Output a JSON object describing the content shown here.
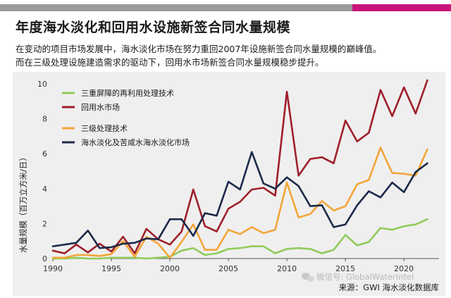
{
  "header": {
    "title": "年度海水淡化和回用水设施新签合同水量规模",
    "subtitle_lines": [
      "在变动的项目市场发展中，海水淡化市场在努力重回2007年设施新签合同水量规模的巅峰值。",
      "而在三级处理设施建造需求的驱动下，回用水市场新签合同水量规模稳步提升。"
    ]
  },
  "colors": {
    "top_bar_grey": "#9a9a9a",
    "top_bar_accent": "#c8147a",
    "panel_bg": "#efefef"
  },
  "watermark": "微信号: GlobalWaterIntel",
  "source": "来源：GWI 海水淡化数据库",
  "chart_data": {
    "type": "line",
    "ylabel": "水量规模（百万立方米/日）",
    "xlim": [
      1990,
      2023
    ],
    "ylim": [
      0,
      10
    ],
    "x_ticks": [
      1990,
      1995,
      2000,
      2005,
      2010,
      2015,
      2020
    ],
    "y_ticks": [
      0,
      2,
      4,
      6,
      8,
      10
    ],
    "grid": false,
    "legend_position": "top-left",
    "x": [
      1990,
      1991,
      1992,
      1993,
      1994,
      1995,
      1996,
      1997,
      1998,
      1999,
      2000,
      2001,
      2002,
      2003,
      2004,
      2005,
      2006,
      2007,
      2008,
      2009,
      2010,
      2011,
      2012,
      2013,
      2014,
      2015,
      2016,
      2017,
      2018,
      2019,
      2020,
      2021,
      2022
    ],
    "series": [
      {
        "name": "三重屏障的再利用处理技术",
        "color": "#8fcb5a",
        "values": [
          0,
          0,
          0.05,
          0,
          0,
          0.05,
          0.05,
          0.05,
          0,
          0.05,
          0.1,
          0.45,
          0.6,
          0.2,
          0.3,
          0.55,
          0.6,
          0.7,
          0.7,
          0.3,
          0.55,
          0.6,
          0.55,
          0.3,
          0.5,
          1.35,
          0.75,
          0.95,
          1.75,
          1.65,
          1.85,
          1.95,
          2.25
        ]
      },
      {
        "name": "回用水市场",
        "color": "#9e1f2b",
        "values": [
          0.45,
          0.3,
          0.8,
          0.35,
          0.85,
          0.4,
          1.25,
          0.3,
          1.7,
          1.1,
          0.8,
          1.55,
          3.95,
          1.85,
          1.55,
          2.85,
          3.25,
          3.95,
          4.05,
          3.6,
          9.55,
          4.75,
          5.7,
          5.8,
          5.45,
          7.9,
          6.7,
          7.2,
          9.65,
          8.15,
          9.8,
          8.3,
          10.2
        ]
      },
      {
        "name": "三级处理技术",
        "color": "#f3a538",
        "values": [
          0.05,
          0.05,
          0.2,
          0.2,
          0.15,
          0.25,
          1.0,
          0.1,
          1.25,
          0.85,
          0.05,
          0.95,
          1.95,
          0.5,
          0.5,
          1.65,
          1.4,
          1.8,
          1.45,
          1.65,
          4.35,
          2.35,
          2.55,
          3.3,
          2.75,
          3.0,
          4.25,
          4.5,
          6.35,
          4.9,
          4.85,
          4.75,
          6.25
        ]
      },
      {
        "name": "海水淡化及苦咸水海水淡化市场",
        "color": "#1b2a4a",
        "values": [
          0.7,
          0.8,
          0.9,
          1.6,
          0.6,
          0.65,
          0.85,
          0.9,
          1.15,
          1.1,
          2.25,
          2.25,
          1.3,
          2.6,
          2.45,
          4.4,
          3.95,
          6.1,
          4.3,
          4.0,
          4.65,
          4.15,
          3.0,
          3.05,
          1.8,
          1.95,
          3.05,
          3.85,
          3.5,
          4.35,
          3.8,
          4.95,
          5.45
        ]
      }
    ]
  }
}
